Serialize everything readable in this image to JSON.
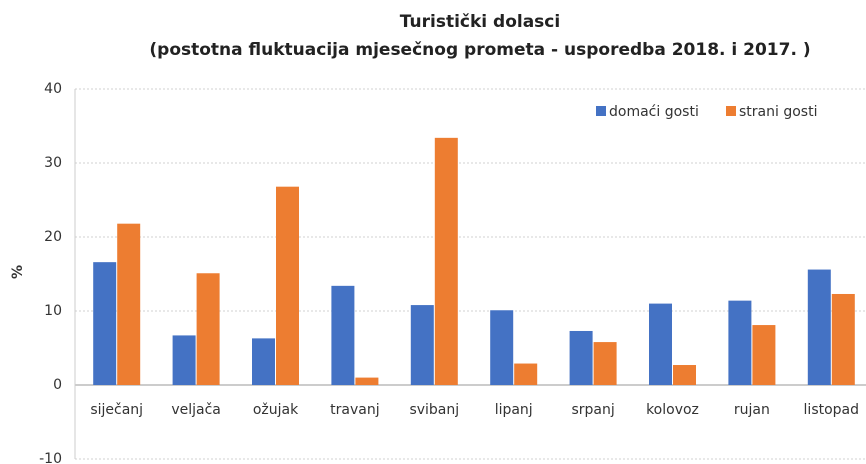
{
  "chart_data": {
    "type": "bar",
    "title": "Turistički dolasci",
    "subtitle": "(postotna fluktuacija mjesečnog prometa - usporedba 2018. i 2017. )",
    "y_label": "%",
    "categories": [
      "siječanj",
      "veljača",
      "ožujak",
      "travanj",
      "svibanj",
      "lipanj",
      "srpanj",
      "kolovoz",
      "rujan",
      "listopad"
    ],
    "series": [
      {
        "name": "domaći gosti",
        "color": "#4472c4",
        "values": [
          16.6,
          6.7,
          6.3,
          13.4,
          10.8,
          10.1,
          7.3,
          11.0,
          11.4,
          15.6
        ]
      },
      {
        "name": "strani gosti",
        "color": "#ed7d31",
        "values": [
          21.8,
          15.1,
          26.8,
          1.0,
          33.4,
          2.9,
          5.8,
          2.7,
          8.1,
          12.3
        ]
      }
    ],
    "ylim": [
      -10,
      40
    ],
    "yticks": [
      -10,
      0,
      10,
      20,
      30,
      40
    ],
    "grid": true,
    "legend": "top-right"
  }
}
